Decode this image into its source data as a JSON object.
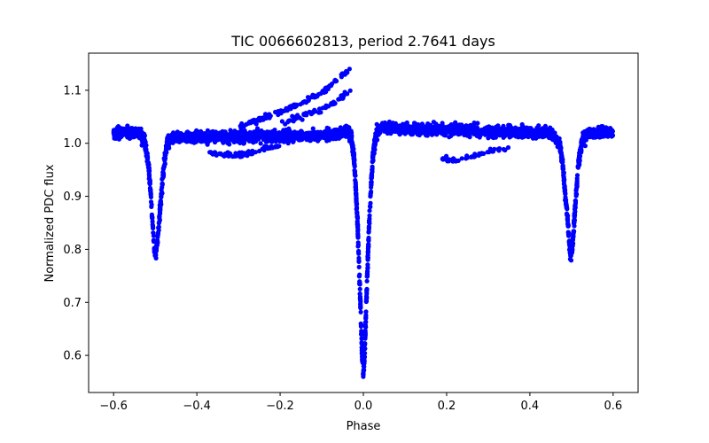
{
  "chart_data": {
    "type": "scatter",
    "title": "TIC 0066602813, period 2.7641 days",
    "xlabel": "Phase",
    "ylabel": "Normalized PDC flux",
    "xlim": [
      -0.66,
      0.66
    ],
    "ylim": [
      0.53,
      1.17
    ],
    "xticks": [
      -0.6,
      -0.4,
      -0.2,
      0.0,
      0.2,
      0.4,
      0.6
    ],
    "xtick_labels": [
      "−0.6",
      "−0.4",
      "−0.2",
      "0.0",
      "0.2",
      "0.4",
      "0.6"
    ],
    "yticks": [
      0.6,
      0.7,
      0.8,
      0.9,
      1.0,
      1.1
    ],
    "ytick_labels": [
      "0.6",
      "0.7",
      "0.8",
      "0.9",
      "1.0",
      "1.1"
    ],
    "grid": false,
    "marker_color": "#0000ff",
    "series": [
      {
        "profile": [
          [
            -0.6,
            1.02
          ],
          [
            -0.54,
            1.02
          ],
          [
            -0.525,
            1.005
          ],
          [
            -0.515,
            0.95
          ],
          [
            -0.508,
            0.87
          ],
          [
            -0.502,
            0.8
          ],
          [
            -0.498,
            0.79
          ],
          [
            -0.494,
            0.82
          ],
          [
            -0.488,
            0.88
          ],
          [
            -0.48,
            0.95
          ],
          [
            -0.472,
            1.0
          ],
          [
            -0.46,
            1.01
          ],
          [
            -0.3,
            1.012
          ],
          [
            -0.1,
            1.015
          ],
          [
            -0.04,
            1.02
          ],
          [
            -0.03,
            1.015
          ],
          [
            -0.022,
            0.97
          ],
          [
            -0.014,
            0.85
          ],
          [
            -0.008,
            0.72
          ],
          [
            -0.003,
            0.6
          ],
          [
            0.0,
            0.565
          ],
          [
            0.003,
            0.6
          ],
          [
            0.008,
            0.72
          ],
          [
            0.014,
            0.85
          ],
          [
            0.022,
            0.97
          ],
          [
            0.03,
            1.015
          ],
          [
            0.04,
            1.03
          ],
          [
            0.2,
            1.025
          ],
          [
            0.45,
            1.02
          ],
          [
            0.472,
            1.0
          ],
          [
            0.48,
            0.95
          ],
          [
            0.488,
            0.88
          ],
          [
            0.494,
            0.82
          ],
          [
            0.498,
            0.79
          ],
          [
            0.502,
            0.8
          ],
          [
            0.508,
            0.87
          ],
          [
            0.515,
            0.95
          ],
          [
            0.525,
            1.005
          ],
          [
            0.54,
            1.02
          ],
          [
            0.6,
            1.02
          ]
        ],
        "excess_branch": [
          [
            -0.3,
            1.03
          ],
          [
            -0.25,
            1.045
          ],
          [
            -0.2,
            1.06
          ],
          [
            -0.15,
            1.075
          ],
          [
            -0.1,
            1.095
          ],
          [
            -0.07,
            1.115
          ],
          [
            -0.05,
            1.13
          ],
          [
            -0.035,
            1.135
          ]
        ],
        "secondary_branch": [
          [
            -0.2,
            1.04
          ],
          [
            -0.15,
            1.05
          ],
          [
            -0.1,
            1.065
          ],
          [
            -0.06,
            1.08
          ],
          [
            -0.035,
            1.1
          ]
        ],
        "dip_branch": [
          [
            0.19,
            0.972
          ],
          [
            0.22,
            0.968
          ],
          [
            0.26,
            0.975
          ],
          [
            0.3,
            0.985
          ],
          [
            0.35,
            0.99
          ]
        ],
        "lower_noise_branch": [
          [
            -0.38,
            0.985
          ],
          [
            -0.32,
            0.978
          ],
          [
            -0.28,
            0.98
          ],
          [
            -0.24,
            0.99
          ],
          [
            -0.2,
            0.995
          ]
        ]
      }
    ]
  }
}
